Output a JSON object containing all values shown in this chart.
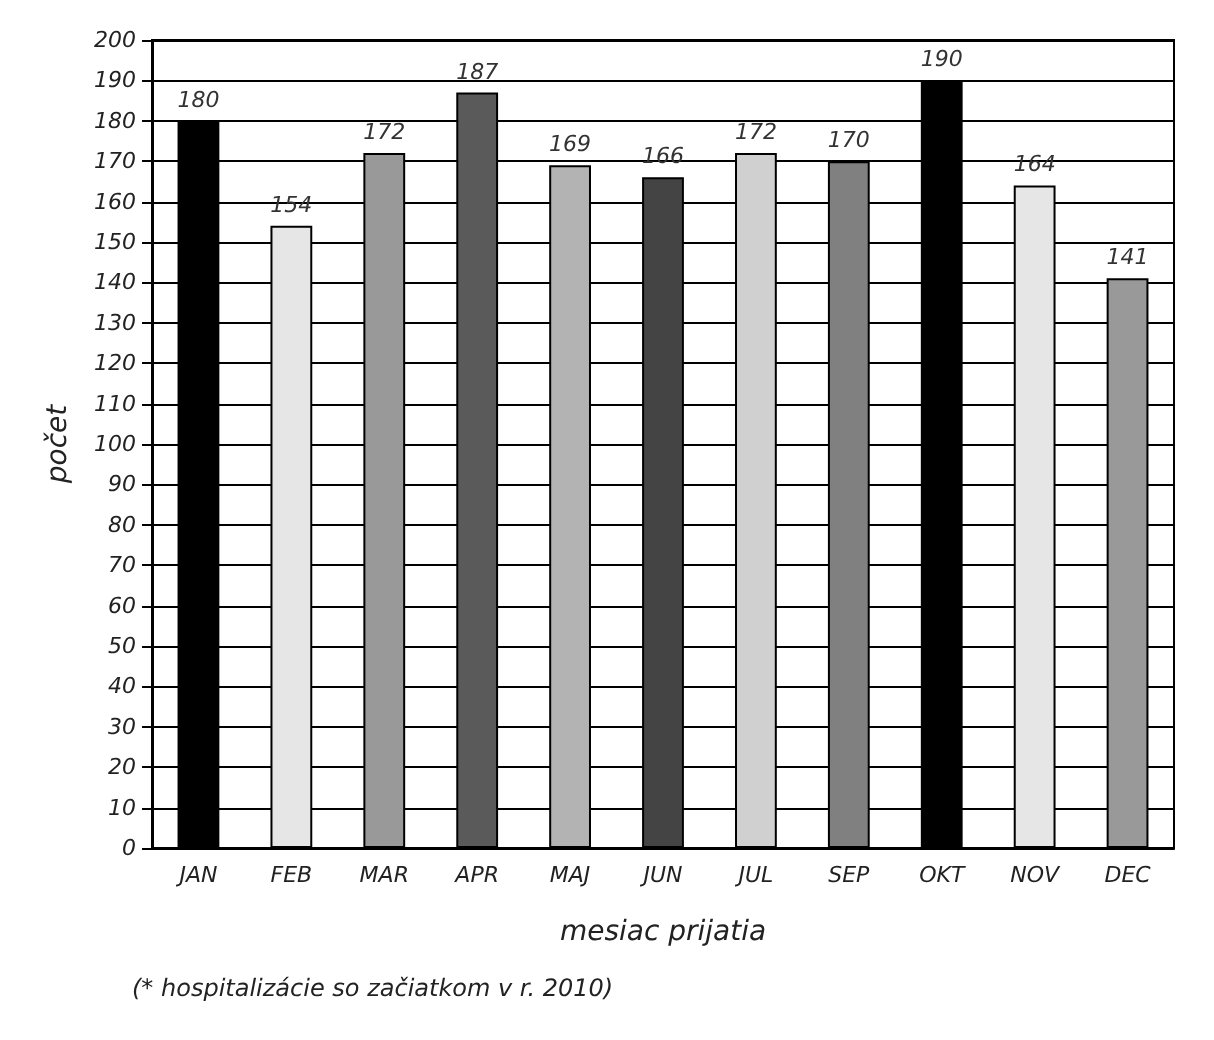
{
  "chart_data": {
    "type": "bar",
    "xlabel": "mesiac prijatia",
    "ylabel": "počet",
    "annotations": [
      "(* hospitalizácie so začiatkom v r. 2010)"
    ],
    "categories": [
      "JAN",
      "FEB",
      "MAR",
      "APR",
      "MAJ",
      "JUN",
      "JUL",
      "SEP",
      "OKT",
      "NOV",
      "DEC"
    ],
    "values": [
      180,
      154,
      172,
      187,
      169,
      166,
      172,
      170,
      190,
      164,
      141
    ],
    "colors": [
      "#000000",
      "#e6e6e6",
      "#999999",
      "#5a5a5a",
      "#b3b3b3",
      "#444444",
      "#d0d0d0",
      "#808080",
      "#000000",
      "#e6e6e6",
      "#999999"
    ],
    "ylim": [
      0,
      200
    ],
    "yticks": [
      0,
      10,
      20,
      30,
      40,
      50,
      60,
      70,
      80,
      90,
      100,
      110,
      120,
      130,
      140,
      150,
      160,
      170,
      180,
      190,
      200
    ],
    "grid": "y",
    "data_labels": true
  }
}
